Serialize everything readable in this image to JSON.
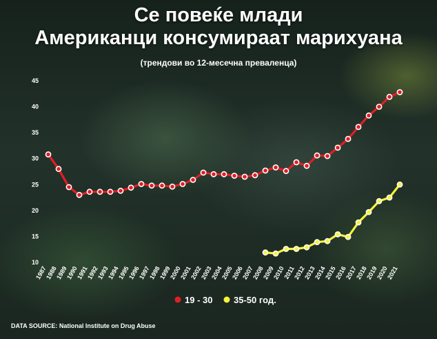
{
  "title": "Се повеќе млади Американци консумираат марихуана",
  "subtitle": "(трендови во 12-месечна преваленца)",
  "source": "DATA SOURCE: National Institute on Drug Abuse",
  "chart_data": {
    "type": "line",
    "ylim": [
      10,
      45
    ],
    "yticks": [
      10,
      15,
      20,
      25,
      30,
      35,
      40,
      45
    ],
    "grid": false,
    "legend_position": "bottom-center",
    "x": [
      "1987",
      "1988",
      "1989",
      "1990",
      "1991",
      "1992",
      "1993",
      "1994",
      "1995",
      "1996",
      "1997",
      "1998",
      "1999",
      "2000",
      "2001",
      "2002",
      "2003",
      "2004",
      "2005",
      "2006",
      "2007",
      "2008",
      "2009",
      "2010",
      "2011",
      "2012",
      "2013",
      "2014",
      "2015",
      "2016",
      "2017",
      "2018",
      "2019",
      "2020",
      "2021"
    ],
    "series": [
      {
        "name": "19 - 30",
        "color": "#e31e24",
        "values": [
          30.8,
          28.0,
          24.5,
          23.0,
          23.6,
          23.6,
          23.6,
          23.8,
          24.4,
          25.1,
          24.8,
          24.8,
          24.6,
          25.1,
          25.9,
          27.3,
          27.0,
          27.0,
          26.7,
          26.5,
          26.8,
          27.7,
          28.3,
          27.6,
          29.3,
          28.6,
          30.6,
          30.5,
          32.1,
          33.8,
          36.1,
          38.3,
          40.0,
          41.9,
          42.8
        ]
      },
      {
        "name": "35-50 год.",
        "color": "#f7f33a",
        "values": [
          null,
          null,
          null,
          null,
          null,
          null,
          null,
          null,
          null,
          null,
          null,
          null,
          null,
          null,
          null,
          null,
          null,
          null,
          null,
          null,
          null,
          11.9,
          11.7,
          12.6,
          12.6,
          12.9,
          13.9,
          14.1,
          15.4,
          14.9,
          17.7,
          19.7,
          21.8,
          22.5,
          25.0
        ]
      }
    ]
  }
}
